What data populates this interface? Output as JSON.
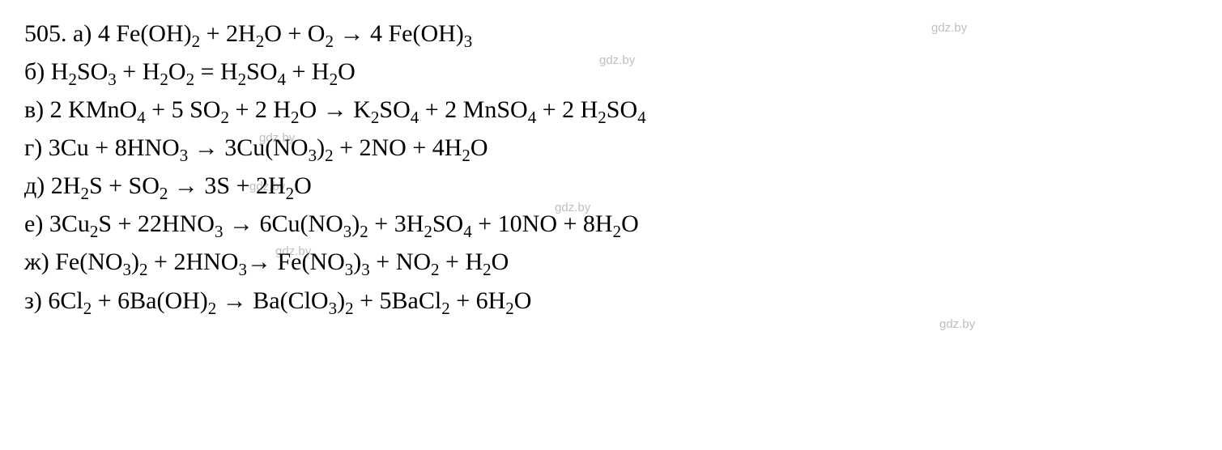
{
  "watermark_text": "gdz.by",
  "watermark_color": "#bfbfbf",
  "text_color": "#000000",
  "background_color": "#ffffff",
  "font_family": "Times New Roman",
  "font_size_pt": 22,
  "lines": [
    {
      "id": "line-a",
      "label": "505. а)",
      "equation_html": "4 Fe(OH)<sub>2</sub> + 2H<sub>2</sub>O + O<sub>2</sub> → 4 Fe(OH)<sub>3</sub>"
    },
    {
      "id": "line-b",
      "label": "б)",
      "equation_html": "H<sub>2</sub>SO<sub>3</sub> + H<sub>2</sub>O<sub>2</sub> = H<sub>2</sub>SO<sub>4</sub> + H<sub>2</sub>O"
    },
    {
      "id": "line-v",
      "label": "в)",
      "equation_html": "2 KMnO<sub>4</sub> + 5 SO<sub>2</sub> + 2 H<sub>2</sub>O → K<sub>2</sub>SO<sub>4</sub> + 2 MnSO<sub>4</sub> + 2 H<sub>2</sub>SO<sub>4</sub>"
    },
    {
      "id": "line-g",
      "label": "г)",
      "equation_html": "3Cu + 8HNO<sub>3</sub> → 3Cu(NO<sub>3</sub>)<sub>2</sub> + 2NO + 4H<sub>2</sub>O"
    },
    {
      "id": "line-d",
      "label": "д)",
      "equation_html": "2H<sub>2</sub>S + SO<sub>2</sub> → 3S + 2H<sub>2</sub>O"
    },
    {
      "id": "line-e",
      "label": "е)",
      "equation_html": "3Cu<sub>2</sub>S + 22HNO<sub>3</sub> → 6Cu(NO<sub>3</sub>)<sub>2</sub> + 3H<sub>2</sub>SO<sub>4</sub> + 10NO + 8H<sub>2</sub>O"
    },
    {
      "id": "line-zh",
      "label": "ж)",
      "equation_html": "Fe(NO<sub>3</sub>)<sub>2</sub> + 2HNO<sub>3</sub>→ Fe(NO<sub>3</sub>)<sub>3</sub> + NO<sub>2</sub> + H<sub>2</sub>O"
    },
    {
      "id": "line-z",
      "label": "з)",
      "equation_html": "6Cl<sub>2</sub> + 6Ba(OH)<sub>2</sub> → Ba(ClO<sub>3</sub>)<sub>2</sub> + 5BaCl<sub>2</sub> + 6H<sub>2</sub>O"
    }
  ]
}
